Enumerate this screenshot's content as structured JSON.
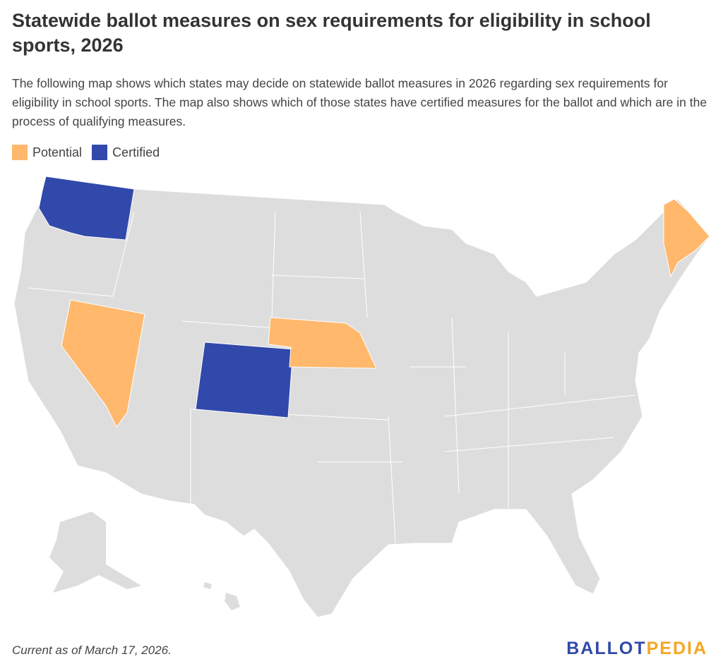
{
  "title": "Statewide ballot measures on sex requirements for eligibility in school sports, 2026",
  "description": "The following map shows which states may decide on statewide ballot measures in 2026 regarding sex requirements for eligibility in school sports. The map also shows which of those states have certified measures for the ballot and which are in the process of qualifying measures.",
  "legend": [
    {
      "label": "Potential",
      "color": "#FFB86C"
    },
    {
      "label": "Certified",
      "color": "#3149AA"
    }
  ],
  "default_color": "#DDDDDD",
  "states": [
    {
      "name": "Washington",
      "status": "Certified"
    },
    {
      "name": "Colorado",
      "status": "Certified"
    },
    {
      "name": "Nevada",
      "status": "Potential"
    },
    {
      "name": "Nebraska",
      "status": "Potential"
    },
    {
      "name": "Maine",
      "status": "Potential"
    }
  ],
  "footer": "Current as of March 17, 2026.",
  "logo": {
    "part1": "BALLOT",
    "part2": "PEDIA",
    "color1": "#3149AA",
    "color2": "#F5A623"
  }
}
